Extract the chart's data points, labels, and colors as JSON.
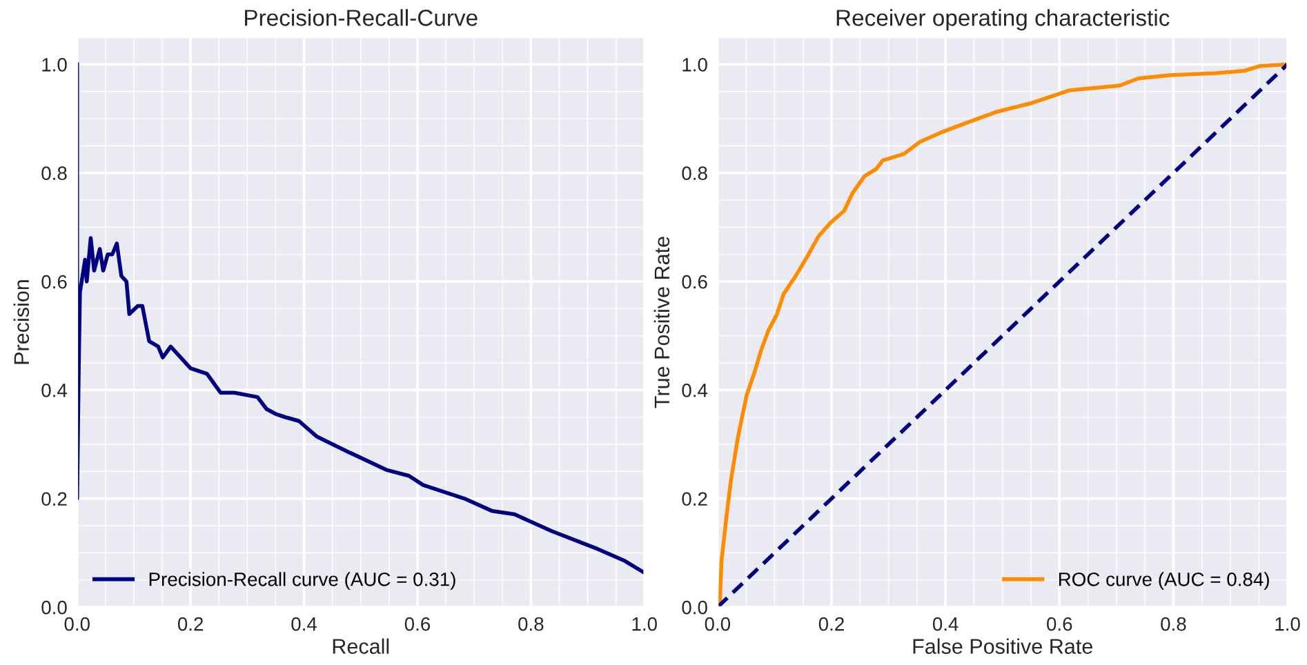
{
  "chart_data": [
    {
      "type": "line",
      "title": "Precision-Recall-Curve",
      "xlabel": "Recall",
      "ylabel": "Precision",
      "series": [
        {
          "name": "Precision-Recall curve (AUC = 0.31)",
          "color": "#000080",
          "line_style": "solid",
          "x": [
            0,
            0,
            0.003,
            0.005,
            0.014,
            0.017,
            0.024,
            0.03,
            0.04,
            0.046,
            0.054,
            0.062,
            0.07,
            0.078,
            0.087,
            0.092,
            0.107,
            0.115,
            0.127,
            0.143,
            0.151,
            0.165,
            0.2,
            0.229,
            0.253,
            0.277,
            0.318,
            0.334,
            0.35,
            0.367,
            0.391,
            0.423,
            0.48,
            0.545,
            0.585,
            0.61,
            0.683,
            0.732,
            0.771,
            0.837,
            0.918,
            0.966,
            0.999
          ],
          "values": [
            1.0,
            0.2,
            0.45,
            0.58,
            0.64,
            0.6,
            0.68,
            0.62,
            0.66,
            0.62,
            0.65,
            0.65,
            0.67,
            0.61,
            0.6,
            0.54,
            0.555,
            0.555,
            0.49,
            0.48,
            0.46,
            0.48,
            0.44,
            0.43,
            0.395,
            0.395,
            0.387,
            0.365,
            0.356,
            0.35,
            0.343,
            0.314,
            0.285,
            0.253,
            0.242,
            0.225,
            0.2,
            0.177,
            0.171,
            0.14,
            0.107,
            0.085,
            0.064
          ]
        }
      ],
      "xlim": [
        0,
        1
      ],
      "ylim": [
        0,
        1.05
      ],
      "xticks": [
        {
          "value": 0,
          "label": "0.0"
        },
        {
          "value": 0.05,
          "label": null
        },
        {
          "value": 0.1,
          "label": null
        },
        {
          "value": 0.15,
          "label": null
        },
        {
          "value": 0.2,
          "label": "0.2"
        },
        {
          "value": 0.25,
          "label": null
        },
        {
          "value": 0.3,
          "label": null
        },
        {
          "value": 0.35,
          "label": null
        },
        {
          "value": 0.4,
          "label": "0.4"
        },
        {
          "value": 0.45,
          "label": null
        },
        {
          "value": 0.5,
          "label": null
        },
        {
          "value": 0.55,
          "label": null
        },
        {
          "value": 0.6,
          "label": "0.6"
        },
        {
          "value": 0.65,
          "label": null
        },
        {
          "value": 0.7,
          "label": null
        },
        {
          "value": 0.75,
          "label": null
        },
        {
          "value": 0.8,
          "label": "0.8"
        },
        {
          "value": 0.85,
          "label": null
        },
        {
          "value": 0.9,
          "label": null
        },
        {
          "value": 0.95,
          "label": null
        },
        {
          "value": 1,
          "label": "1.0"
        }
      ],
      "yticks": [
        {
          "value": 0,
          "label": "0.0"
        },
        {
          "value": 0.05,
          "label": null
        },
        {
          "value": 0.1,
          "label": null
        },
        {
          "value": 0.15,
          "label": null
        },
        {
          "value": 0.2,
          "label": "0.2"
        },
        {
          "value": 0.25,
          "label": null
        },
        {
          "value": 0.3,
          "label": null
        },
        {
          "value": 0.35,
          "label": null
        },
        {
          "value": 0.4,
          "label": "0.4"
        },
        {
          "value": 0.45,
          "label": null
        },
        {
          "value": 0.5,
          "label": null
        },
        {
          "value": 0.55,
          "label": null
        },
        {
          "value": 0.6,
          "label": "0.6"
        },
        {
          "value": 0.65,
          "label": null
        },
        {
          "value": 0.7,
          "label": null
        },
        {
          "value": 0.75,
          "label": null
        },
        {
          "value": 0.8,
          "label": "0.8"
        },
        {
          "value": 0.85,
          "label": null
        },
        {
          "value": 0.9,
          "label": null
        },
        {
          "value": 0.95,
          "label": null
        },
        {
          "value": 1,
          "label": "1.0"
        },
        {
          "value": 1.05,
          "label": null
        }
      ],
      "grid": true,
      "legend": "bottom left",
      "marker": "none"
    },
    {
      "type": "line",
      "title": "Receiver operating characteristic",
      "xlabel": "False Positive Rate",
      "ylabel": "True Positive Rate",
      "series": [
        {
          "name": "ROC curve (AUC = 0.84)",
          "color": "#ff8c00",
          "line_style": "solid",
          "x": [
            0,
            0.004,
            0.007,
            0.016,
            0.024,
            0.036,
            0.051,
            0.065,
            0.077,
            0.089,
            0.104,
            0.116,
            0.137,
            0.157,
            0.177,
            0.198,
            0.222,
            0.237,
            0.258,
            0.278,
            0.29,
            0.327,
            0.355,
            0.391,
            0.431,
            0.488,
            0.552,
            0.617,
            0.706,
            0.738,
            0.794,
            0.876,
            0.924,
            0.952,
            1.0
          ],
          "values": [
            0,
            0.008,
            0.085,
            0.17,
            0.237,
            0.314,
            0.39,
            0.433,
            0.475,
            0.509,
            0.539,
            0.577,
            0.61,
            0.645,
            0.683,
            0.708,
            0.73,
            0.763,
            0.794,
            0.807,
            0.823,
            0.835,
            0.857,
            0.874,
            0.89,
            0.912,
            0.929,
            0.952,
            0.961,
            0.974,
            0.98,
            0.984,
            0.988,
            0.997,
            1.0
          ]
        },
        {
          "color": "#000080",
          "line_style": "dashed",
          "x": [
            0,
            1
          ],
          "values": [
            0,
            1
          ]
        }
      ],
      "xlim": [
        0,
        1
      ],
      "ylim": [
        0,
        1.05
      ],
      "xticks": [
        {
          "value": 0,
          "label": "0.0"
        },
        {
          "value": 0.05,
          "label": null
        },
        {
          "value": 0.1,
          "label": null
        },
        {
          "value": 0.15,
          "label": null
        },
        {
          "value": 0.2,
          "label": "0.2"
        },
        {
          "value": 0.25,
          "label": null
        },
        {
          "value": 0.3,
          "label": null
        },
        {
          "value": 0.35,
          "label": null
        },
        {
          "value": 0.4,
          "label": "0.4"
        },
        {
          "value": 0.45,
          "label": null
        },
        {
          "value": 0.5,
          "label": null
        },
        {
          "value": 0.55,
          "label": null
        },
        {
          "value": 0.6,
          "label": "0.6"
        },
        {
          "value": 0.65,
          "label": null
        },
        {
          "value": 0.7,
          "label": null
        },
        {
          "value": 0.75,
          "label": null
        },
        {
          "value": 0.8,
          "label": "0.8"
        },
        {
          "value": 0.85,
          "label": null
        },
        {
          "value": 0.9,
          "label": null
        },
        {
          "value": 0.95,
          "label": null
        },
        {
          "value": 1,
          "label": "1.0"
        }
      ],
      "yticks": [
        {
          "value": 0,
          "label": "0.0"
        },
        {
          "value": 0.05,
          "label": null
        },
        {
          "value": 0.1,
          "label": null
        },
        {
          "value": 0.15,
          "label": null
        },
        {
          "value": 0.2,
          "label": "0.2"
        },
        {
          "value": 0.25,
          "label": null
        },
        {
          "value": 0.3,
          "label": null
        },
        {
          "value": 0.35,
          "label": null
        },
        {
          "value": 0.4,
          "label": "0.4"
        },
        {
          "value": 0.45,
          "label": null
        },
        {
          "value": 0.5,
          "label": null
        },
        {
          "value": 0.55,
          "label": null
        },
        {
          "value": 0.6,
          "label": "0.6"
        },
        {
          "value": 0.65,
          "label": null
        },
        {
          "value": 0.7,
          "label": null
        },
        {
          "value": 0.75,
          "label": null
        },
        {
          "value": 0.8,
          "label": "0.8"
        },
        {
          "value": 0.85,
          "label": null
        },
        {
          "value": 0.9,
          "label": null
        },
        {
          "value": 0.95,
          "label": null
        },
        {
          "value": 1,
          "label": "1.0"
        },
        {
          "value": 1.05,
          "label": null
        }
      ],
      "grid": true,
      "legend": "bottom right",
      "marker": "none"
    }
  ]
}
